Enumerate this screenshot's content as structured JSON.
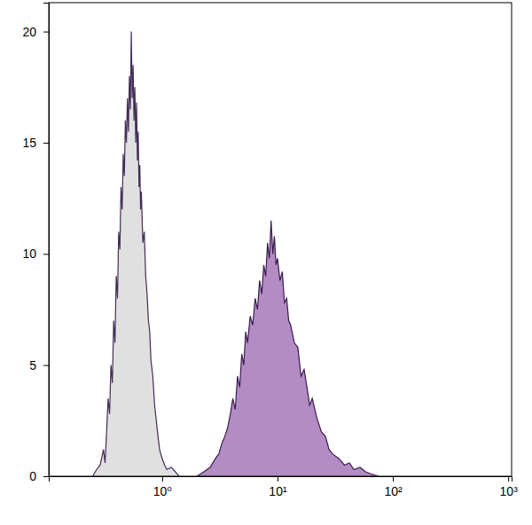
{
  "chart_data": {
    "type": "histogram",
    "log": "x",
    "xlim": [
      0.104,
      1070
    ],
    "xticks": [
      {
        "value": 1,
        "label": "10⁰"
      },
      {
        "value": 10,
        "label": "10¹"
      },
      {
        "value": 100,
        "label": "10²"
      },
      {
        "value": 1000,
        "label": "10³"
      }
    ],
    "ylim": [
      0,
      21.3
    ],
    "yticks": [
      0,
      5,
      10,
      15,
      20
    ],
    "series": [
      {
        "color": "#e0e0e0",
        "x": [
          0.25,
          0.27,
          0.29,
          0.31,
          0.32,
          0.33,
          0.34,
          0.35,
          0.36,
          0.37,
          0.38,
          0.39,
          0.4,
          0.41,
          0.42,
          0.43,
          0.44,
          0.45,
          0.46,
          0.47,
          0.48,
          0.49,
          0.5,
          0.51,
          0.52,
          0.53,
          0.54,
          0.55,
          0.56,
          0.57,
          0.58,
          0.59,
          0.6,
          0.61,
          0.62,
          0.63,
          0.64,
          0.65,
          0.66,
          0.68,
          0.7,
          0.72,
          0.74,
          0.76,
          0.78,
          0.8,
          0.83,
          0.86,
          0.89,
          0.92,
          0.95,
          1.0,
          1.05,
          1.1,
          1.2,
          1.3,
          1.4
        ],
        "values": [
          0,
          0.3,
          0.5,
          1.2,
          0.6,
          2,
          3.5,
          2.8,
          5,
          4.2,
          7,
          6,
          9,
          8,
          11,
          10.2,
          13,
          12,
          14.5,
          13.5,
          16,
          15,
          17,
          15.5,
          18,
          16.5,
          20,
          17,
          18.5,
          16,
          17.5,
          15,
          16.8,
          14.2,
          15.5,
          13,
          14,
          12,
          12.8,
          10.5,
          11,
          9,
          8.2,
          7,
          6.5,
          5.2,
          4.5,
          3.2,
          2.5,
          1.8,
          1.2,
          0.8,
          0.5,
          0.3,
          0.4,
          0.2,
          0
        ]
      },
      {
        "color": "#b48cc4",
        "x": [
          2.0,
          2.3,
          2.6,
          2.9,
          3.1,
          3.3,
          3.5,
          3.7,
          3.9,
          4.1,
          4.3,
          4.5,
          4.7,
          4.9,
          5.1,
          5.3,
          5.5,
          5.8,
          6.1,
          6.4,
          6.7,
          7.0,
          7.3,
          7.6,
          7.9,
          8.2,
          8.5,
          8.8,
          9.1,
          9.4,
          9.7,
          10,
          10.5,
          11,
          11.5,
          12,
          12.5,
          13,
          14,
          15,
          16,
          17,
          18,
          19,
          20,
          22,
          24,
          26,
          28,
          30,
          34,
          38,
          42,
          46,
          52,
          58,
          65,
          75
        ],
        "values": [
          0,
          0.2,
          0.4,
          0.8,
          1.0,
          1.5,
          1.8,
          2.2,
          2.8,
          3.5,
          3.0,
          4.5,
          4,
          5.5,
          5,
          6.5,
          6,
          7.2,
          6.8,
          8,
          7.5,
          8.8,
          8.2,
          9.5,
          9,
          10.5,
          9.8,
          11.5,
          10,
          10.8,
          9.5,
          9.8,
          8.8,
          9.2,
          7.8,
          8,
          7,
          6.8,
          6,
          5.8,
          4.5,
          4.8,
          4,
          3.2,
          3.5,
          2.6,
          2,
          1.8,
          1.2,
          1.0,
          0.8,
          0.5,
          0.6,
          0.3,
          0.4,
          0.2,
          0.1,
          0
        ]
      }
    ]
  }
}
